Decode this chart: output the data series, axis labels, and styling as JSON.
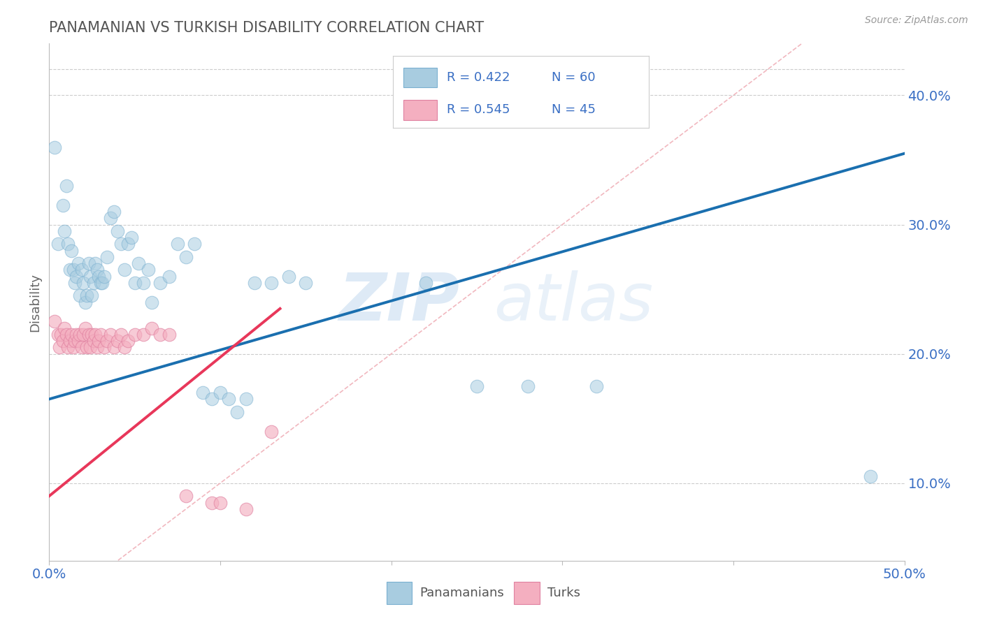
{
  "title": "PANAMANIAN VS TURKISH DISABILITY CORRELATION CHART",
  "source": "Source: ZipAtlas.com",
  "ylabel": "Disability",
  "xlim": [
    0.0,
    0.5
  ],
  "ylim": [
    0.04,
    0.44
  ],
  "x_ticks": [
    0.0,
    0.1,
    0.2,
    0.3,
    0.4,
    0.5
  ],
  "x_tick_labels_show": [
    true,
    false,
    false,
    false,
    false,
    true
  ],
  "y_ticks_right": [
    0.1,
    0.2,
    0.3,
    0.4
  ],
  "panamanian_color": "#a8cce0",
  "turkish_color": "#f4afc0",
  "panamanian_R": 0.422,
  "panamanian_N": 60,
  "turkish_R": 0.545,
  "turkish_N": 45,
  "legend_label_1": "Panamanians",
  "legend_label_2": "Turks",
  "watermark_zip": "ZIP",
  "watermark_atlas": "atlas",
  "panamanian_scatter": [
    [
      0.003,
      0.36
    ],
    [
      0.005,
      0.285
    ],
    [
      0.008,
      0.315
    ],
    [
      0.009,
      0.295
    ],
    [
      0.01,
      0.33
    ],
    [
      0.011,
      0.285
    ],
    [
      0.012,
      0.265
    ],
    [
      0.013,
      0.28
    ],
    [
      0.014,
      0.265
    ],
    [
      0.015,
      0.255
    ],
    [
      0.016,
      0.26
    ],
    [
      0.017,
      0.27
    ],
    [
      0.018,
      0.245
    ],
    [
      0.019,
      0.265
    ],
    [
      0.02,
      0.255
    ],
    [
      0.021,
      0.24
    ],
    [
      0.022,
      0.245
    ],
    [
      0.023,
      0.27
    ],
    [
      0.024,
      0.26
    ],
    [
      0.025,
      0.245
    ],
    [
      0.026,
      0.255
    ],
    [
      0.027,
      0.27
    ],
    [
      0.028,
      0.265
    ],
    [
      0.029,
      0.26
    ],
    [
      0.03,
      0.255
    ],
    [
      0.031,
      0.255
    ],
    [
      0.032,
      0.26
    ],
    [
      0.034,
      0.275
    ],
    [
      0.036,
      0.305
    ],
    [
      0.038,
      0.31
    ],
    [
      0.04,
      0.295
    ],
    [
      0.042,
      0.285
    ],
    [
      0.044,
      0.265
    ],
    [
      0.046,
      0.285
    ],
    [
      0.048,
      0.29
    ],
    [
      0.05,
      0.255
    ],
    [
      0.052,
      0.27
    ],
    [
      0.055,
      0.255
    ],
    [
      0.058,
      0.265
    ],
    [
      0.06,
      0.24
    ],
    [
      0.065,
      0.255
    ],
    [
      0.07,
      0.26
    ],
    [
      0.075,
      0.285
    ],
    [
      0.08,
      0.275
    ],
    [
      0.085,
      0.285
    ],
    [
      0.09,
      0.17
    ],
    [
      0.095,
      0.165
    ],
    [
      0.1,
      0.17
    ],
    [
      0.105,
      0.165
    ],
    [
      0.11,
      0.155
    ],
    [
      0.115,
      0.165
    ],
    [
      0.12,
      0.255
    ],
    [
      0.13,
      0.255
    ],
    [
      0.14,
      0.26
    ],
    [
      0.15,
      0.255
    ],
    [
      0.22,
      0.255
    ],
    [
      0.25,
      0.175
    ],
    [
      0.28,
      0.175
    ],
    [
      0.32,
      0.175
    ],
    [
      0.48,
      0.105
    ]
  ],
  "turkish_scatter": [
    [
      0.003,
      0.225
    ],
    [
      0.005,
      0.215
    ],
    [
      0.006,
      0.205
    ],
    [
      0.007,
      0.215
    ],
    [
      0.008,
      0.21
    ],
    [
      0.009,
      0.22
    ],
    [
      0.01,
      0.215
    ],
    [
      0.011,
      0.205
    ],
    [
      0.012,
      0.21
    ],
    [
      0.013,
      0.215
    ],
    [
      0.014,
      0.205
    ],
    [
      0.015,
      0.21
    ],
    [
      0.016,
      0.215
    ],
    [
      0.017,
      0.21
    ],
    [
      0.018,
      0.215
    ],
    [
      0.019,
      0.205
    ],
    [
      0.02,
      0.215
    ],
    [
      0.021,
      0.22
    ],
    [
      0.022,
      0.205
    ],
    [
      0.023,
      0.215
    ],
    [
      0.024,
      0.205
    ],
    [
      0.025,
      0.215
    ],
    [
      0.026,
      0.21
    ],
    [
      0.027,
      0.215
    ],
    [
      0.028,
      0.205
    ],
    [
      0.029,
      0.21
    ],
    [
      0.03,
      0.215
    ],
    [
      0.032,
      0.205
    ],
    [
      0.034,
      0.21
    ],
    [
      0.036,
      0.215
    ],
    [
      0.038,
      0.205
    ],
    [
      0.04,
      0.21
    ],
    [
      0.042,
      0.215
    ],
    [
      0.044,
      0.205
    ],
    [
      0.046,
      0.21
    ],
    [
      0.05,
      0.215
    ],
    [
      0.055,
      0.215
    ],
    [
      0.06,
      0.22
    ],
    [
      0.065,
      0.215
    ],
    [
      0.07,
      0.215
    ],
    [
      0.08,
      0.09
    ],
    [
      0.095,
      0.085
    ],
    [
      0.1,
      0.085
    ],
    [
      0.115,
      0.08
    ],
    [
      0.13,
      0.14
    ]
  ],
  "blue_line": {
    "x0": 0.0,
    "y0": 0.165,
    "x1": 0.5,
    "y1": 0.355
  },
  "pink_line": {
    "x0": 0.0,
    "y0": 0.09,
    "x1": 0.135,
    "y1": 0.235
  },
  "diag_line_color": "#f0b0b8",
  "blue_line_color": "#1a6faf",
  "pink_line_color": "#e8375a",
  "grid_color": "#cccccc",
  "title_color": "#555555",
  "axis_label_color": "#3a6fc4",
  "legend_text_color": "#3a6fc4"
}
